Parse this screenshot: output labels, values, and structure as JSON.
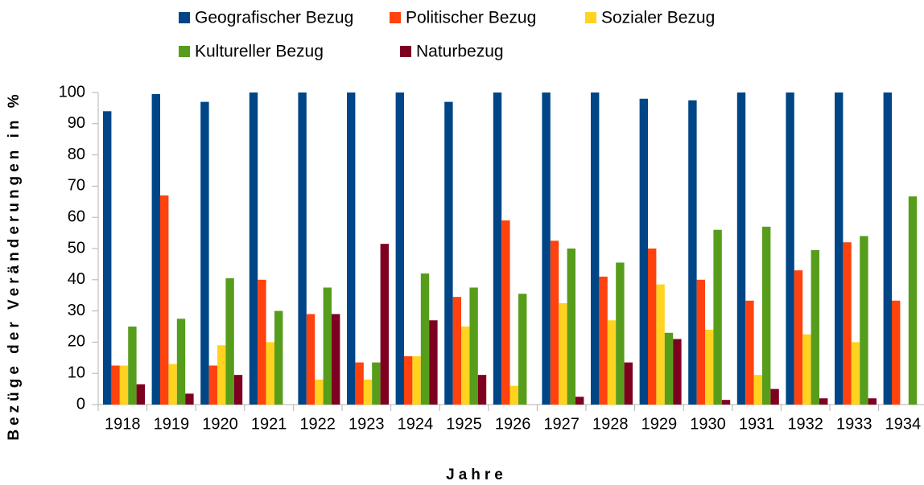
{
  "chart_data": {
    "type": "bar",
    "y_label": "Bezüge der Veränderungen in %",
    "x_label": "Jahre",
    "categories": [
      "1918",
      "1919",
      "1920",
      "1921",
      "1922",
      "1923",
      "1924",
      "1925",
      "1926",
      "1927",
      "1928",
      "1929",
      "1930",
      "1931",
      "1932",
      "1933",
      "1934"
    ],
    "series": [
      {
        "name": "Geografischer Bezug",
        "color": "#004586",
        "values": [
          94,
          99.5,
          97,
          100,
          100,
          100,
          100,
          97,
          100,
          100,
          100,
          98,
          97.5,
          100,
          100,
          100,
          100
        ]
      },
      {
        "name": "Politischer Bezug",
        "color": "#ff420e",
        "values": [
          12.5,
          67,
          12.5,
          40,
          29,
          13.5,
          15.5,
          34.5,
          59,
          52.5,
          41,
          50,
          40,
          33.3,
          43,
          52,
          33.3
        ]
      },
      {
        "name": "Sozialer Bezug",
        "color": "#ffd320",
        "values": [
          12.5,
          13,
          19,
          20,
          8,
          8,
          15.5,
          25,
          6,
          32.5,
          27,
          38.5,
          24,
          9.5,
          22.5,
          20,
          0
        ]
      },
      {
        "name": "Kultureller Bezug",
        "color": "#579d1c",
        "values": [
          25,
          27.5,
          40.5,
          30,
          37.5,
          13.5,
          42,
          37.5,
          35.5,
          50,
          45.5,
          23,
          56,
          57,
          49.5,
          54,
          66.7
        ]
      },
      {
        "name": "Naturbezug",
        "color": "#7e0021",
        "values": [
          6.5,
          3.5,
          9.5,
          0,
          29,
          51.5,
          27,
          9.5,
          0,
          2.5,
          13.5,
          21,
          1.5,
          5,
          2,
          2,
          0
        ]
      }
    ],
    "ylim": [
      0,
      100
    ],
    "yticks": [
      0,
      10,
      20,
      30,
      40,
      50,
      60,
      70,
      80,
      90,
      100
    ],
    "grid": false,
    "legend": "top"
  }
}
